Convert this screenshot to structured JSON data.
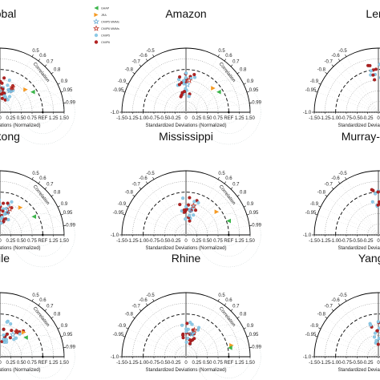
{
  "chart_data": {
    "type": "scatter",
    "series_legend": [
      {
        "name": "GHAP",
        "marker": "triangle-left",
        "color": "#3bb54a"
      },
      {
        "name": "JRA",
        "marker": "triangle-right",
        "color": "#f59a23"
      },
      {
        "name": "CMIP5 MMMs",
        "marker": "star-outline",
        "color": "#6baed6"
      },
      {
        "name": "CMIP6 MMMs",
        "marker": "star-outline",
        "color": "#c0392b"
      },
      {
        "name": "CMIP5",
        "marker": "circle",
        "color": "#8ecae6"
      },
      {
        "name": "CMIP6",
        "marker": "circle",
        "color": "#b22222"
      }
    ],
    "axis": {
      "xlabel": "Standardized Deviations (Normalized)",
      "xticks": [
        "-1.50",
        "-1.25",
        "-1.00",
        "-0.75",
        "-0.50",
        "-0.25",
        "0",
        "0.25",
        "0.50",
        "0.75",
        "REF",
        "1.25",
        "1.50"
      ],
      "corr_label": "Correlation",
      "corr_ticks": [
        "-1.0",
        "-0.95",
        "-0.9",
        "-0.8",
        "-0.7",
        "-0.6",
        "-0.5",
        "0.5",
        "0.6",
        "0.7",
        "0.8",
        "0.9",
        "0.95",
        "0.99"
      ]
    },
    "panels": [
      {
        "title": "Global"
      },
      {
        "title": "Amazon"
      },
      {
        "title": "Lena"
      },
      {
        "title": "Mekong"
      },
      {
        "title": "Mississippi"
      },
      {
        "title": "Murray-Darling"
      },
      {
        "title": "Nile"
      },
      {
        "title": "Rhine"
      },
      {
        "title": "Yangtze"
      }
    ]
  }
}
